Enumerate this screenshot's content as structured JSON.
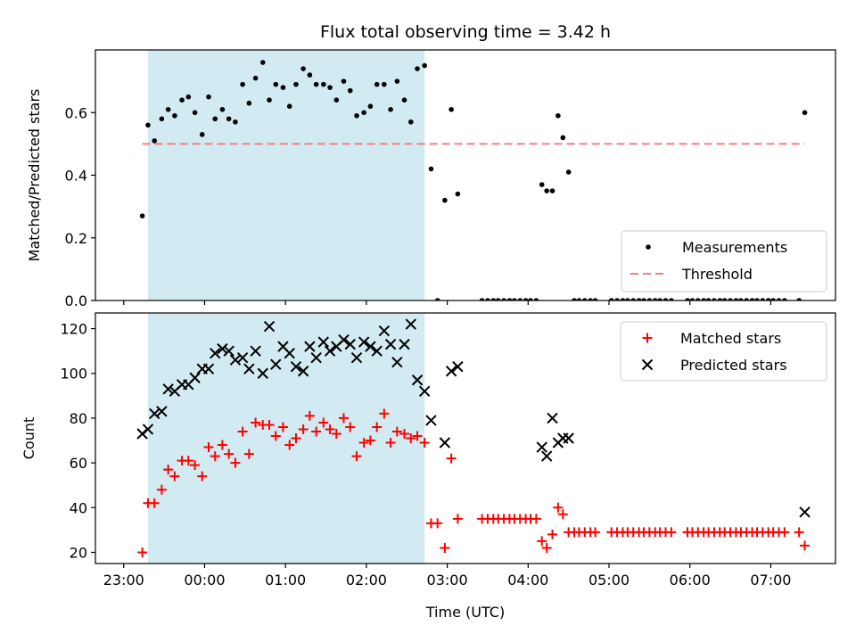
{
  "colors": {
    "measurement": "#000000",
    "threshold": "#f08080",
    "matched": "#ff0000",
    "predicted": "#000000",
    "observing_band": "#add8e6"
  },
  "chart_data": [
    {
      "type": "scatter",
      "title": "Flux total observing time = 3.42 h",
      "xlabel": "",
      "ylabel": "Matched/Predicted stars",
      "x_unit": "hours after 23:00 UTC",
      "xlim": [
        -0.35,
        8.8
      ],
      "ylim": [
        0,
        0.8
      ],
      "yticks": [
        0.0,
        0.2,
        0.4,
        0.6
      ],
      "ytick_labels": [
        "0.0",
        "0.2",
        "0.4",
        "0.6"
      ],
      "xticks": [
        0,
        1,
        2,
        3,
        4,
        5,
        6,
        7,
        8
      ],
      "xtick_labels_visible": false,
      "grid": false,
      "legend_position": "lower-right",
      "shaded_span": {
        "x": [
          0.3,
          3.72
        ],
        "color": "#add8e6"
      },
      "threshold": {
        "name": "Threshold",
        "value": 0.5,
        "x": [
          0.23,
          8.42
        ]
      },
      "series": [
        {
          "name": "Measurements",
          "marker": "dot",
          "x": [
            0.23,
            0.3,
            0.38,
            0.47,
            0.55,
            0.63,
            0.72,
            0.8,
            0.88,
            0.97,
            1.05,
            1.13,
            1.22,
            1.3,
            1.38,
            1.47,
            1.55,
            1.63,
            1.72,
            1.8,
            1.88,
            1.97,
            2.05,
            2.13,
            2.22,
            2.3,
            2.38,
            2.47,
            2.55,
            2.63,
            2.72,
            2.8,
            2.88,
            2.97,
            3.05,
            3.13,
            3.22,
            3.3,
            3.38,
            3.47,
            3.55,
            3.63,
            3.72,
            3.8,
            3.88,
            3.97,
            4.05,
            4.13,
            4.43,
            4.5,
            4.57,
            4.63,
            4.7,
            4.77,
            4.83,
            4.9,
            4.97,
            5.03,
            5.1,
            5.17,
            5.23,
            5.3,
            5.37,
            5.43,
            5.5,
            5.57,
            5.63,
            5.7,
            5.77,
            5.83,
            6.03,
            6.1,
            6.17,
            6.23,
            6.3,
            6.37,
            6.43,
            6.5,
            6.57,
            6.63,
            6.7,
            6.77,
            6.97,
            7.03,
            7.1,
            7.17,
            7.23,
            7.3,
            7.37,
            7.43,
            7.5,
            7.57,
            7.63,
            7.7,
            7.77,
            7.83,
            7.9,
            7.97,
            8.03,
            8.1,
            8.17,
            8.35,
            8.42
          ],
          "y": [
            0.27,
            0.56,
            0.51,
            0.58,
            0.61,
            0.59,
            0.64,
            0.65,
            0.6,
            0.53,
            0.65,
            0.58,
            0.61,
            0.58,
            0.57,
            0.69,
            0.63,
            0.71,
            0.76,
            0.64,
            0.69,
            0.68,
            0.62,
            0.69,
            0.74,
            0.72,
            0.69,
            0.69,
            0.68,
            0.64,
            0.7,
            0.67,
            0.59,
            0.6,
            0.62,
            0.69,
            0.69,
            0.61,
            0.7,
            0.64,
            0.57,
            0.74,
            0.75,
            0.42,
            0.0,
            0.32,
            0.61,
            0.34,
            0.0,
            0.0,
            0.0,
            0.0,
            0.0,
            0.0,
            0.0,
            0.0,
            0.0,
            0.0,
            0.0,
            0.37,
            0.35,
            0.35,
            0.59,
            0.52,
            0.41,
            0.0,
            0.0,
            0.0,
            0.0,
            0.0,
            0.0,
            0.0,
            0.0,
            0.0,
            0.0,
            0.0,
            0.0,
            0.0,
            0.0,
            0.0,
            0.0,
            0.0,
            0.0,
            0.0,
            0.0,
            0.0,
            0.0,
            0.0,
            0.0,
            0.0,
            0.0,
            0.0,
            0.0,
            0.0,
            0.0,
            0.0,
            0.0,
            0.0,
            0.0,
            0.0,
            0.0,
            0.0,
            0.6
          ]
        }
      ]
    },
    {
      "type": "scatter",
      "title": "",
      "xlabel": "Time (UTC)",
      "ylabel": "Count",
      "x_unit": "hours after 23:00 UTC",
      "xlim": [
        -0.35,
        8.8
      ],
      "ylim": [
        15,
        127
      ],
      "yticks": [
        20,
        40,
        60,
        80,
        100,
        120
      ],
      "ytick_labels": [
        "20",
        "40",
        "60",
        "80",
        "100",
        "120"
      ],
      "xticks": [
        0,
        1,
        2,
        3,
        4,
        5,
        6,
        7,
        8
      ],
      "xtick_labels": [
        "23:00",
        "00:00",
        "01:00",
        "02:00",
        "03:00",
        "04:00",
        "05:00",
        "06:00",
        "07:00"
      ],
      "grid": false,
      "legend_position": "upper-right",
      "shaded_span": {
        "x": [
          0.3,
          3.72
        ],
        "color": "#add8e6"
      },
      "series": [
        {
          "name": "Matched stars",
          "marker": "plus",
          "x": [
            0.23,
            0.3,
            0.38,
            0.47,
            0.55,
            0.63,
            0.72,
            0.8,
            0.88,
            0.97,
            1.05,
            1.13,
            1.22,
            1.3,
            1.38,
            1.47,
            1.55,
            1.63,
            1.72,
            1.8,
            1.88,
            1.97,
            2.05,
            2.13,
            2.22,
            2.3,
            2.38,
            2.47,
            2.55,
            2.63,
            2.72,
            2.8,
            2.88,
            2.97,
            3.05,
            3.13,
            3.22,
            3.3,
            3.38,
            3.47,
            3.55,
            3.63,
            3.72,
            3.8,
            3.88,
            3.97,
            4.05,
            4.13,
            4.43,
            4.5,
            4.57,
            4.63,
            4.7,
            4.77,
            4.83,
            4.9,
            4.97,
            5.03,
            5.1,
            5.17,
            5.23,
            5.3,
            5.37,
            5.43,
            5.5,
            5.57,
            5.63,
            5.7,
            5.77,
            5.83,
            6.03,
            6.1,
            6.17,
            6.23,
            6.3,
            6.37,
            6.43,
            6.5,
            6.57,
            6.63,
            6.7,
            6.77,
            6.97,
            7.03,
            7.1,
            7.17,
            7.23,
            7.3,
            7.37,
            7.43,
            7.5,
            7.57,
            7.63,
            7.7,
            7.77,
            7.83,
            7.9,
            7.97,
            8.03,
            8.1,
            8.17,
            8.35,
            8.42
          ],
          "y": [
            20,
            42,
            42,
            48,
            57,
            54,
            61,
            61,
            59,
            54,
            67,
            63,
            68,
            64,
            60,
            74,
            64,
            78,
            77,
            77,
            72,
            76,
            68,
            71,
            75,
            81,
            74,
            78,
            75,
            73,
            80,
            76,
            63,
            69,
            70,
            76,
            82,
            69,
            74,
            73,
            71,
            72,
            69,
            33,
            33,
            22,
            62,
            35,
            35,
            35,
            35,
            35,
            35,
            35,
            35,
            35,
            35,
            35,
            35,
            25,
            22,
            28,
            40,
            37,
            29,
            29,
            29,
            29,
            29,
            29,
            29,
            29,
            29,
            29,
            29,
            29,
            29,
            29,
            29,
            29,
            29,
            29,
            29,
            29,
            29,
            29,
            29,
            29,
            29,
            29,
            29,
            29,
            29,
            29,
            29,
            29,
            29,
            29,
            29,
            29,
            29,
            29,
            23
          ]
        },
        {
          "name": "Predicted stars",
          "marker": "x",
          "x": [
            0.23,
            0.3,
            0.38,
            0.47,
            0.55,
            0.63,
            0.72,
            0.8,
            0.88,
            0.97,
            1.05,
            1.13,
            1.22,
            1.3,
            1.38,
            1.47,
            1.55,
            1.63,
            1.72,
            1.8,
            1.88,
            1.97,
            2.05,
            2.13,
            2.22,
            2.3,
            2.38,
            2.47,
            2.55,
            2.63,
            2.72,
            2.8,
            2.88,
            2.97,
            3.05,
            3.13,
            3.22,
            3.3,
            3.38,
            3.47,
            3.55,
            3.63,
            3.72,
            3.8,
            3.88,
            3.97,
            4.05,
            4.13,
            4.43,
            4.5,
            4.57,
            4.63,
            4.7,
            4.77,
            4.83,
            4.9,
            4.97,
            5.03,
            5.1,
            5.17,
            5.23,
            5.3,
            5.37,
            5.43,
            5.5,
            5.57,
            5.63,
            5.7,
            5.77,
            5.83,
            6.03,
            6.1,
            6.17,
            6.23,
            6.3,
            6.37,
            6.43,
            6.5,
            6.57,
            6.63,
            6.7,
            6.77,
            6.97,
            7.03,
            7.1,
            7.17,
            7.23,
            7.3,
            7.37,
            7.43,
            7.5,
            7.57,
            7.63,
            7.7,
            7.77,
            7.83,
            7.9,
            7.97,
            8.03,
            8.1,
            8.17,
            8.35,
            8.42
          ],
          "y": [
            73,
            75,
            82,
            83,
            93,
            92,
            95,
            95,
            98,
            102,
            102,
            109,
            111,
            110,
            106,
            107,
            102,
            110,
            100,
            121,
            104,
            112,
            109,
            103,
            101,
            112,
            107,
            114,
            110,
            112,
            115,
            113,
            107,
            114,
            112,
            110,
            119,
            113,
            105,
            113,
            122,
            97,
            92,
            79,
            null,
            69,
            101,
            103,
            null,
            null,
            null,
            null,
            null,
            null,
            null,
            null,
            null,
            null,
            null,
            67,
            63,
            80,
            69,
            71,
            71,
            null,
            null,
            null,
            null,
            null,
            null,
            null,
            null,
            null,
            null,
            null,
            null,
            null,
            null,
            null,
            null,
            null,
            null,
            null,
            null,
            null,
            null,
            null,
            null,
            null,
            null,
            null,
            null,
            null,
            null,
            null,
            null,
            null,
            null,
            null,
            null,
            null,
            38
          ]
        }
      ]
    }
  ]
}
